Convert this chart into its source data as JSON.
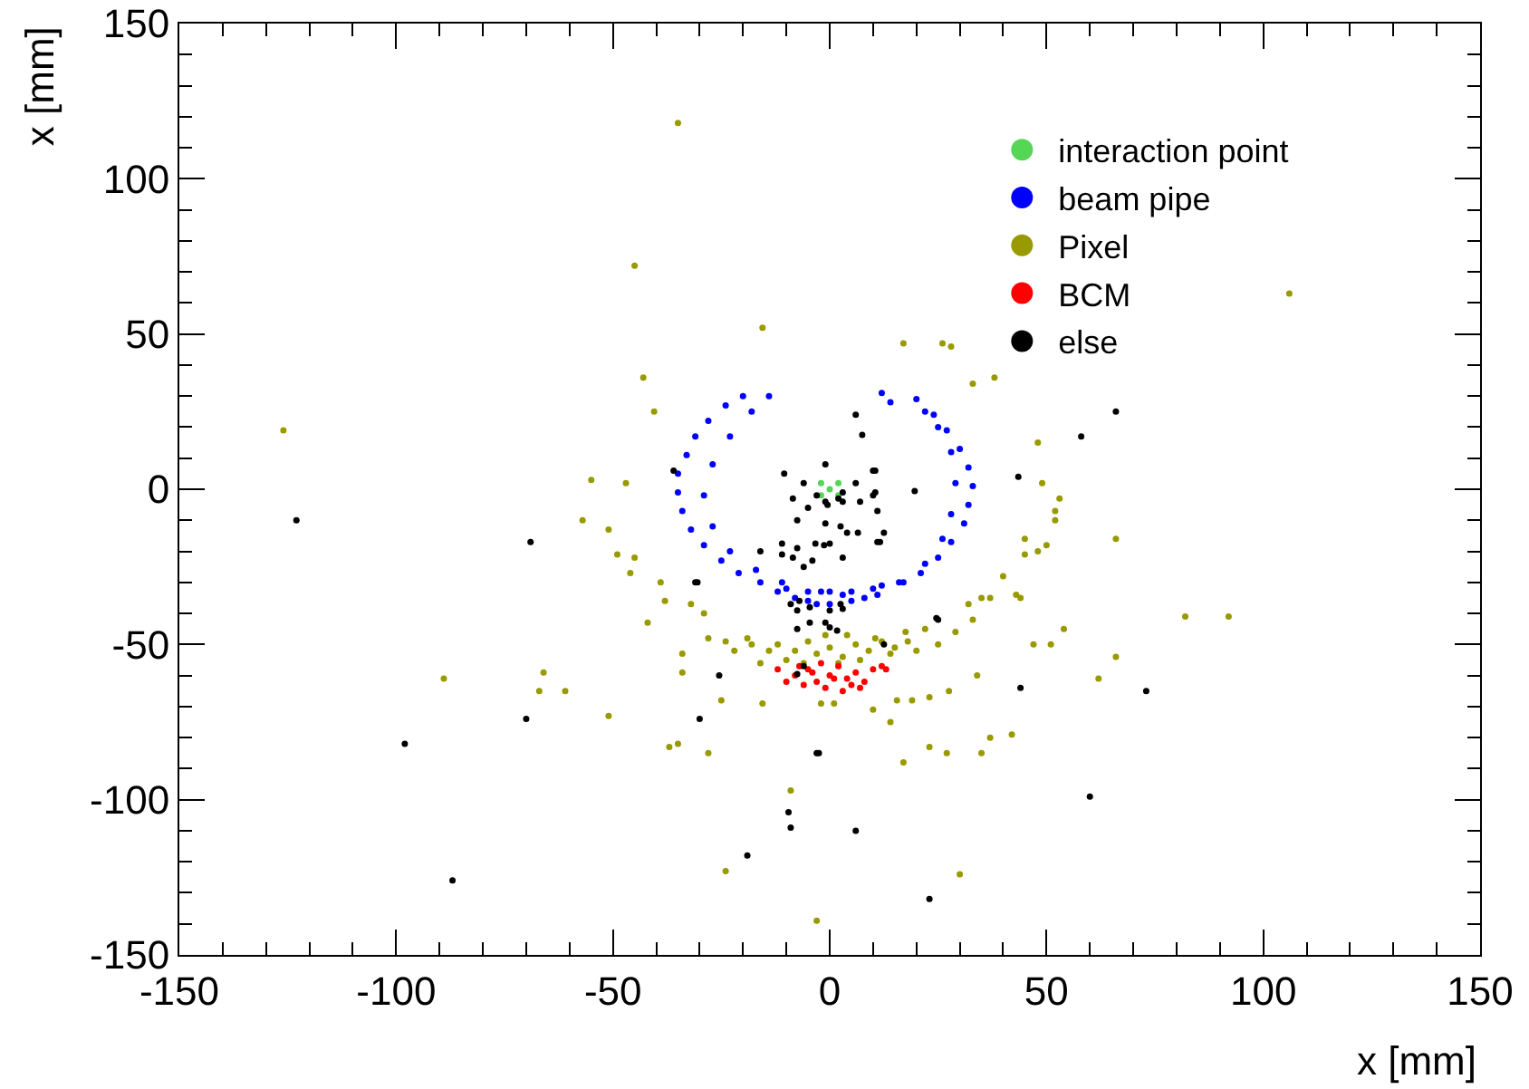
{
  "chart_data": {
    "type": "scatter",
    "xlabel": "x [mm]",
    "ylabel": "x [mm]",
    "xlim": [
      -150,
      150
    ],
    "ylim": [
      -150,
      150
    ],
    "xticks": [
      -150,
      -100,
      -50,
      0,
      50,
      100,
      150
    ],
    "yticks": [
      -150,
      -100,
      -50,
      0,
      50,
      100,
      150
    ],
    "legend": "top right",
    "series": [
      {
        "name": "interaction point",
        "color": "#55d655",
        "x": [
          0,
          -2,
          2,
          2,
          -2
        ],
        "values": [
          0,
          2,
          -2,
          2,
          -2
        ]
      },
      {
        "name": "beam pipe",
        "color": "#0000ff",
        "x": [
          -20,
          -24,
          -28,
          -31,
          -33,
          -35,
          -35,
          -34,
          -32,
          -29,
          -25,
          -21,
          -16,
          -10,
          -5,
          0,
          5,
          10,
          16,
          21,
          25,
          28,
          31,
          32,
          33,
          32,
          30,
          27,
          24,
          20,
          -14,
          -18,
          -23,
          -27,
          -29,
          -27,
          -23,
          -17,
          -11,
          -5,
          0,
          5,
          11,
          17,
          22,
          26,
          28,
          29,
          28,
          25,
          22,
          12,
          14,
          -8,
          3,
          -2,
          8,
          -12,
          12,
          -3
        ],
        "values": [
          30,
          27,
          22,
          17,
          11,
          5,
          -1,
          -7,
          -13,
          -18,
          -23,
          -27,
          -30,
          -32,
          -33,
          -33,
          -33,
          -32,
          -30,
          -27,
          -22,
          -17,
          -11,
          -5,
          1,
          7,
          13,
          19,
          24,
          29,
          30,
          25,
          17,
          8,
          -2,
          -12,
          -20,
          -26,
          -30,
          -36,
          -37,
          -36,
          -34,
          -30,
          -24,
          -16,
          -8,
          2,
          12,
          20,
          25,
          31,
          28,
          -35,
          -34,
          -33,
          -35,
          -33,
          -31,
          -37
        ]
      },
      {
        "name": "Pixel",
        "color": "#999900",
        "x": [
          -35,
          -45,
          -15.5,
          -43,
          -40.5,
          -126,
          -55,
          -47,
          -57,
          -51,
          -49,
          -46,
          -45,
          -39,
          -38,
          -42,
          -32,
          -29,
          -28,
          -24,
          -19,
          -34,
          -34,
          -89,
          -66,
          -67,
          -61,
          -51,
          -37,
          -35,
          -28,
          -25,
          -15.5,
          -9,
          -24,
          -3,
          106,
          17,
          26,
          28,
          33,
          38,
          48,
          49,
          53,
          52,
          52,
          66,
          45,
          45,
          48,
          50,
          40,
          37,
          43,
          44,
          32,
          35,
          33,
          29,
          54,
          82,
          92,
          47,
          51,
          66,
          22,
          17.5,
          25,
          15,
          10.5,
          62,
          34,
          27.5,
          23,
          19,
          15.5,
          10,
          14,
          42,
          37,
          35,
          27,
          23,
          17,
          30,
          1,
          -2,
          -12,
          -8,
          -5,
          -3,
          0,
          3,
          6,
          9,
          12,
          -10,
          -6,
          2,
          7,
          -14,
          14,
          -1,
          4,
          -18,
          18,
          -22,
          20,
          -16
        ],
        "values": [
          118,
          72,
          52,
          36,
          25,
          19,
          3,
          2,
          -10,
          -13,
          -21,
          -27,
          -22,
          -30,
          -36,
          -43,
          -37,
          -40,
          -48,
          -49,
          -48,
          -53,
          -59,
          -61,
          -59,
          -65,
          -65,
          -73,
          -83,
          -82,
          -85,
          -68,
          -69,
          -97,
          -123,
          -139,
          63,
          47,
          47,
          46,
          34,
          36,
          15,
          2,
          -3,
          -7,
          -10,
          -16,
          -16,
          -21,
          -20,
          -18,
          -28,
          -35,
          -34,
          -35,
          -37,
          -35,
          -42,
          -46,
          -45,
          -41,
          -41,
          -50,
          -50,
          -54,
          -45,
          -46,
          -50,
          -51,
          -48,
          -61,
          -60,
          -65,
          -67,
          -68,
          -68,
          -71,
          -75,
          -79,
          -80,
          -85,
          -85,
          -83,
          -88,
          -124,
          -69,
          -69,
          -50,
          -52,
          -49,
          -53,
          -51,
          -54,
          -50,
          -52,
          -49,
          -55,
          -56,
          -56,
          -55,
          -52,
          -53,
          -47,
          -47,
          -50,
          -49,
          -52,
          -52,
          -56
        ]
      },
      {
        "name": "BCM",
        "color": "#ff0000",
        "x": [
          -12,
          -8,
          -5,
          -3,
          0,
          2,
          4,
          6,
          -1,
          -6,
          3,
          -10,
          8,
          10,
          -2,
          1,
          -4,
          5,
          -7,
          7,
          12,
          13
        ],
        "values": [
          -58,
          -60,
          -58,
          -62,
          -60,
          -57,
          -61,
          -59,
          -64,
          -63,
          -65,
          -62,
          -62,
          -58,
          -56,
          -61,
          -59,
          -63,
          -57,
          -64,
          -57,
          -58
        ]
      },
      {
        "name": "else",
        "color": "#000000",
        "x": [
          -123,
          -69,
          -98,
          -87,
          -70,
          -30.5,
          -30,
          -25.5,
          -36,
          -10.5,
          -3,
          -9.5,
          -9,
          -19,
          -6,
          66,
          58,
          43.5,
          19.6,
          73,
          44,
          60,
          6,
          23,
          -2.5,
          25,
          6,
          7.5,
          10,
          10,
          12.5,
          11,
          12.5,
          -1,
          -6,
          6,
          10.5,
          10.5,
          -8.5,
          -5,
          -0.5,
          3,
          7,
          11,
          -7.5,
          -1,
          2.5,
          4,
          6.5,
          11.6,
          -11,
          -7.5,
          -3.3,
          -1.3,
          0,
          -16,
          -11,
          3,
          -8.5,
          -4,
          -6,
          -31,
          -9,
          -7,
          -7.5,
          -4.6,
          0,
          3,
          2.5,
          -4.6,
          -1,
          0,
          1.7,
          -7.5,
          24.6,
          -7.5,
          -3,
          2,
          -1,
          3
        ],
        "values": [
          -10,
          -17,
          -82,
          -126,
          -74,
          -30,
          -74,
          -60,
          6,
          5,
          -85,
          -104,
          -109,
          -118,
          -57,
          25,
          17,
          4,
          -0.6,
          -65,
          -64,
          -99,
          -110,
          -132,
          -85,
          -42,
          24,
          17.5,
          6,
          -2,
          -14,
          -17,
          -50,
          8,
          2,
          2,
          6,
          -1,
          -3,
          -6,
          -5,
          -4,
          -4,
          -7,
          -10,
          -11,
          -12,
          -14,
          -14,
          -17,
          -17.5,
          -19,
          -17.5,
          -18,
          -17.5,
          -20,
          -21,
          -22,
          -22,
          -23,
          -25,
          -30,
          -37,
          -36,
          -39,
          -38,
          -39,
          -38.5,
          -37,
          -43,
          -43,
          -44.5,
          -45.5,
          -45,
          -41.5,
          -59.5,
          -2,
          -3,
          -4,
          -1
        ]
      }
    ]
  }
}
